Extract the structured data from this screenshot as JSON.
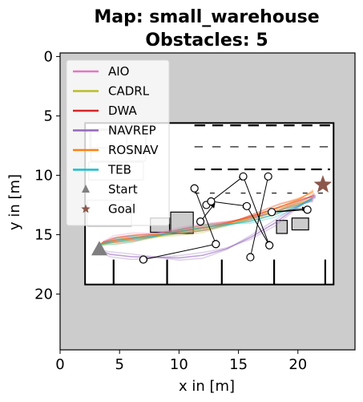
{
  "chart_data": {
    "type": "line",
    "title": "Map: small_warehouse",
    "subtitle": "Obstacles: 5",
    "xlabel": "x in [m]",
    "ylabel": "y in [m]",
    "xlim": [
      0,
      24.8
    ],
    "ylim": [
      24.7,
      -0.3
    ],
    "y_inverted": true,
    "x_ticks": [
      0,
      5,
      10,
      15,
      20
    ],
    "y_ticks": [
      0,
      5,
      10,
      15,
      20
    ],
    "grid": false,
    "legend_placement": "upper-left",
    "background_color": "#cccccc",
    "map_free_space_color": "#ffffff",
    "series": [
      {
        "name": "AIO",
        "color": "#e377c2",
        "x": [
          3.6,
          4.5,
          6,
          8,
          10,
          12,
          14,
          16,
          18,
          20,
          21.3
        ],
        "y": [
          15.6,
          15.3,
          15.1,
          14.9,
          14.6,
          14.3,
          14.0,
          13.6,
          13.1,
          12.5,
          12.1
        ]
      },
      {
        "name": "CADRL",
        "color": "#bcbd22",
        "x": [
          3.4,
          4.5,
          6,
          8,
          10,
          12,
          14,
          16,
          18,
          20,
          21.2
        ],
        "y": [
          15.9,
          15.6,
          15.4,
          15.2,
          14.9,
          14.6,
          14.2,
          13.7,
          13.1,
          12.4,
          12.0
        ]
      },
      {
        "name": "DWA",
        "color": "#d62728",
        "x": [
          3.5,
          4.8,
          6.5,
          8.5,
          10.5,
          12.5,
          14.5,
          16.5,
          18.5,
          20.5,
          21.4
        ],
        "y": [
          15.7,
          15.4,
          15.2,
          15.0,
          14.7,
          14.4,
          13.9,
          13.3,
          12.6,
          12.0,
          11.7
        ]
      },
      {
        "name": "NAVREP",
        "color": "#9467bd",
        "x": [
          3.2,
          4.2,
          6,
          8,
          10,
          12,
          14,
          16,
          18,
          20,
          21.5
        ],
        "y": [
          16.3,
          16.6,
          16.8,
          16.9,
          17.0,
          16.8,
          16.2,
          15.2,
          14.0,
          12.6,
          11.8
        ]
      },
      {
        "name": "ROSNAV",
        "color": "#ff7f0e",
        "x": [
          3.3,
          4.5,
          6,
          8,
          10,
          12,
          14,
          16,
          18,
          20,
          21.3
        ],
        "y": [
          15.8,
          15.4,
          15.2,
          15.0,
          14.8,
          14.5,
          14.1,
          13.5,
          12.8,
          12.0,
          11.4
        ]
      },
      {
        "name": "TEB",
        "color": "#17becf",
        "x": [
          3.4,
          4.6,
          6,
          8,
          10,
          12,
          14,
          16,
          18,
          20,
          21.2
        ],
        "y": [
          15.8,
          15.5,
          15.3,
          15.1,
          14.8,
          14.5,
          14.2,
          13.8,
          13.2,
          12.6,
          12.1
        ]
      }
    ],
    "start": {
      "label": "Start",
      "x": 3.3,
      "y": 16.2,
      "color": "#7f7f7f"
    },
    "goal": {
      "label": "Goal",
      "x": 22.1,
      "y": 10.8,
      "color": "#8c564b"
    },
    "obstacle_waypoints": [
      {
        "x": 11.3,
        "y": 11.1
      },
      {
        "x": 12.3,
        "y": 12.5
      },
      {
        "x": 12.7,
        "y": 12.2
      },
      {
        "x": 11.8,
        "y": 13.9
      },
      {
        "x": 15.4,
        "y": 10.1
      },
      {
        "x": 17.5,
        "y": 10.1
      },
      {
        "x": 15.7,
        "y": 12.6
      },
      {
        "x": 17.8,
        "y": 13.1
      },
      {
        "x": 20.8,
        "y": 12.9
      },
      {
        "x": 13.1,
        "y": 15.8
      },
      {
        "x": 17.6,
        "y": 15.9
      },
      {
        "x": 16.0,
        "y": 16.9
      },
      {
        "x": 7.0,
        "y": 17.1
      }
    ],
    "obstacle_paths": [
      {
        "from": [
          11.3,
          11.1
        ],
        "to": [
          13.1,
          15.8
        ]
      },
      {
        "from": [
          12.3,
          12.5
        ],
        "to": [
          15.4,
          10.1
        ]
      },
      {
        "from": [
          15.4,
          10.1
        ],
        "to": [
          17.6,
          15.9
        ]
      },
      {
        "from": [
          17.5,
          10.1
        ],
        "to": [
          16.0,
          16.9
        ]
      },
      {
        "from": [
          12.7,
          12.2
        ],
        "to": [
          15.7,
          12.6
        ]
      },
      {
        "from": [
          17.8,
          13.1
        ],
        "to": [
          20.8,
          12.9
        ]
      },
      {
        "from": [
          11.8,
          13.9
        ],
        "to": [
          13.0,
          12.4
        ]
      },
      {
        "from": [
          13.1,
          15.8
        ],
        "to": [
          7.0,
          17.1
        ]
      },
      {
        "from": [
          15.7,
          12.6
        ],
        "to": [
          17.6,
          15.9
        ]
      },
      {
        "from": [
          17.8,
          13.1
        ],
        "to": [
          20.7,
          12.8
        ]
      }
    ],
    "map_geometry": {
      "outer_wall": {
        "x0": 2.1,
        "x1": 23.0,
        "y0": 5.6,
        "y1": 19.2
      },
      "shelf_dashes": [
        {
          "y": 5.8,
          "x0": 11.3,
          "x1": 22.7,
          "dash": [
            0.9,
            0.6
          ],
          "width": 2.2
        },
        {
          "y": 7.6,
          "x0": 11.3,
          "x1": 22.7,
          "dash": [
            0.7,
            0.8
          ],
          "width": 1.1
        },
        {
          "y": 9.5,
          "x0": 11.3,
          "x1": 22.7,
          "dash": [
            0.9,
            0.5
          ],
          "width": 2.2
        },
        {
          "y": 11.5,
          "x0": 11.3,
          "x1": 22.7,
          "dash": [
            0.4,
            0.9
          ],
          "width": 1.1
        }
      ],
      "bottom_separators": [
        4.5,
        9.0,
        13.6,
        18.0,
        22.3
      ],
      "boxes": [
        {
          "x0": 9.3,
          "x1": 11.2,
          "y0": 13.1,
          "y1": 14.9
        },
        {
          "x0": 7.6,
          "x1": 9.2,
          "y0": 13.6,
          "y1": 14.8
        },
        {
          "x0": 18.2,
          "x1": 19.1,
          "y0": 13.8,
          "y1": 14.9
        },
        {
          "x0": 19.5,
          "x1": 20.9,
          "y0": 13.6,
          "y1": 14.6
        }
      ],
      "gray_blobs": [
        {
          "x0": 2.5,
          "x1": 5.6,
          "y0": 6.1,
          "y1": 7.7
        },
        {
          "x0": 2.6,
          "x1": 7.2,
          "y0": 6.2,
          "y1": 8.8
        },
        {
          "x0": 2.4,
          "x1": 7.0,
          "y0": 8.9,
          "y1": 10.4
        },
        {
          "x0": 2.3,
          "x1": 6.0,
          "y0": 12.1,
          "y1": 14.3
        }
      ]
    }
  }
}
